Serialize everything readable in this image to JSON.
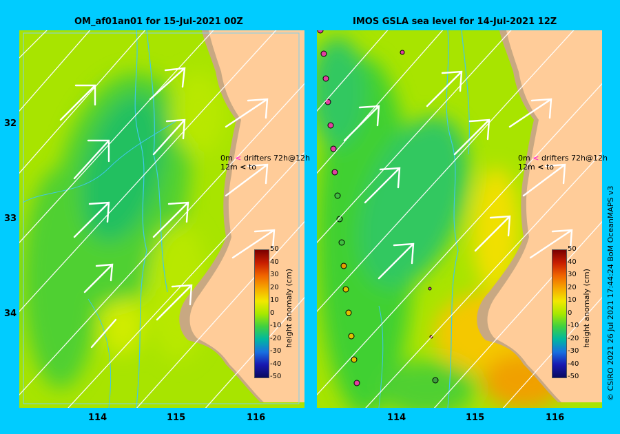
{
  "panels": [
    {
      "title": "OM_af01an01 for 15-Jul-2021 00Z"
    },
    {
      "title": "IMOS GSLA sea level  for 14-Jul-2021 12Z"
    }
  ],
  "lat_labels": [
    "32",
    "33",
    "34"
  ],
  "lon_labels": [
    "114",
    "115",
    "116"
  ],
  "drifter_legend": {
    "line1_depth": "0m",
    "line1_text": "drifters 72h@12h",
    "line2_depth": "12m",
    "line2_text": "to"
  },
  "colorbar": {
    "title": "height anomaly (cm)",
    "ticks": [
      "50",
      "40",
      "30",
      "20",
      "10",
      "0",
      "-10",
      "-20",
      "-30",
      "-40",
      "-50"
    ],
    "colors": [
      "#7a0000",
      "#c81e00",
      "#f06400",
      "#f6a800",
      "#f2e800",
      "#a8e800",
      "#40d040",
      "#00b8a0",
      "#1870e0",
      "#1818b0",
      "#0a0a60"
    ]
  },
  "credit": "© CSIRO 2021   26 Jul 2021 17:44:24 BoM OceanMAPS v3",
  "palette": {
    "background": "#00ccff",
    "land": "#ffcc99",
    "coast": "#c8a882",
    "river": "#40c8e8",
    "vector": "#ffffff"
  }
}
